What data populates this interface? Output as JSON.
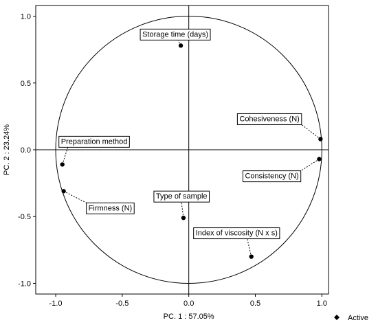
{
  "chart_data": {
    "type": "scatter",
    "xlabel": "PC. 1 : 57.05%",
    "ylabel": "PC. 2 : 23.24%",
    "xlim": [
      -1.15,
      1.05
    ],
    "ylim": [
      -1.08,
      1.08
    ],
    "x_ticks": [
      "-1.0",
      "-0.5",
      "0.0",
      "0.5",
      "1.0"
    ],
    "y_ticks": [
      "1.0",
      "0.5",
      "0.0",
      "-0.5",
      "-1.0"
    ],
    "x_tick_values": [
      -1.0,
      -0.5,
      0.0,
      0.5,
      1.0
    ],
    "y_tick_values": [
      1.0,
      0.5,
      0.0,
      -0.5,
      -1.0
    ],
    "unit_circle": true,
    "grid": false,
    "legend": {
      "label": "Active",
      "position": "bottom-right"
    },
    "points": [
      {
        "label": "Storage time (days)",
        "x": -0.06,
        "y": 0.78
      },
      {
        "label": "Cohesiveness (N)",
        "x": 0.99,
        "y": 0.08
      },
      {
        "label": "Consistency (N)",
        "x": 0.98,
        "y": -0.07
      },
      {
        "label": "Preparation method",
        "x": -0.95,
        "y": -0.11
      },
      {
        "label": "Firmness (N)",
        "x": -0.94,
        "y": -0.31
      },
      {
        "label": "Type of sample",
        "x": -0.04,
        "y": -0.51
      },
      {
        "label": "Index of viscosity (N x s)",
        "x": 0.47,
        "y": -0.8
      }
    ]
  }
}
